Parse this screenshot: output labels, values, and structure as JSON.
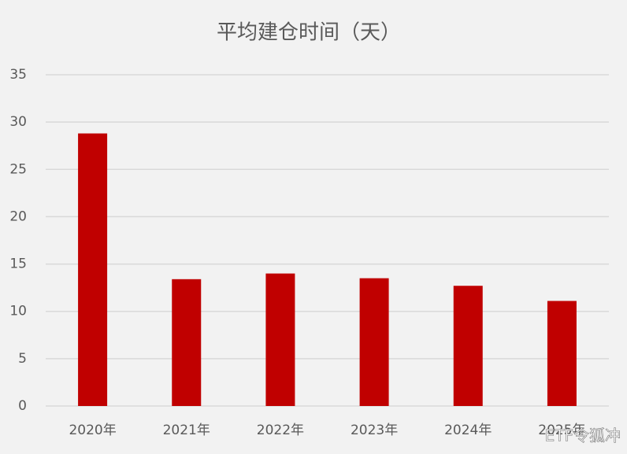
{
  "chart_data": {
    "type": "bar",
    "title": "平均建仓时间（天）",
    "categories": [
      "2020年",
      "2021年",
      "2022年",
      "2023年",
      "2024年",
      "2025年"
    ],
    "values": [
      28.8,
      13.4,
      14.0,
      13.5,
      12.7,
      11.1
    ],
    "color": "#c00000",
    "ylim": [
      0,
      35
    ],
    "yticks": [
      0,
      5,
      10,
      15,
      20,
      25,
      30,
      35
    ],
    "grid": true,
    "watermark": "ETF令狐冲"
  }
}
